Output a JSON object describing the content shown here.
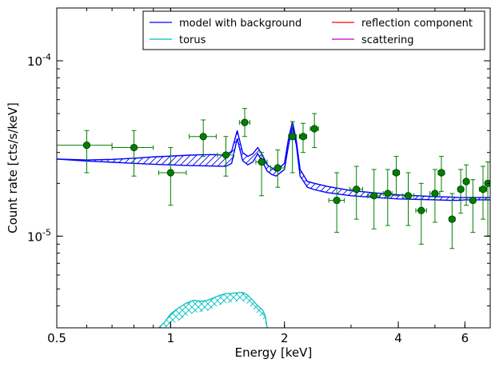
{
  "chart_data": {
    "type": "line",
    "xlabel": "Energy [keV]",
    "ylabel": "Count rate [cts/s/keV]",
    "x_scale": "log",
    "y_scale": "log",
    "xlim": [
      0.5,
      7.0
    ],
    "ylim": [
      3e-06,
      0.0002
    ],
    "x_ticks": [
      {
        "value": 0.5,
        "label": "0.5"
      },
      {
        "value": 1,
        "label": "1"
      },
      {
        "value": 2,
        "label": "2"
      },
      {
        "value": 4,
        "label": "4"
      },
      {
        "value": 6,
        "label": "6"
      }
    ],
    "y_ticks": [
      {
        "value": 1e-05,
        "base": "10",
        "exp": "-5"
      },
      {
        "value": 0.0001,
        "base": "10",
        "exp": "-4"
      }
    ],
    "legend": {
      "placement": "top-right",
      "entries": [
        {
          "label": "model with background",
          "color": "#0000ff"
        },
        {
          "label": "reflection component",
          "color": "#ff0000"
        },
        {
          "label": "torus",
          "color": "#00bfbf"
        },
        {
          "label": "scattering",
          "color": "#bf00bf"
        }
      ]
    },
    "colors": {
      "model": "#0000ff",
      "torus": "#00bfbf",
      "data": "#007f00",
      "errorbar": "#008000"
    },
    "model_band": {
      "x": [
        0.5,
        0.6,
        0.7,
        0.8,
        0.9,
        1.0,
        1.1,
        1.2,
        1.3,
        1.4,
        1.45,
        1.5,
        1.55,
        1.6,
        1.65,
        1.7,
        1.75,
        1.8,
        1.85,
        1.9,
        2.0,
        2.05,
        2.1,
        2.15,
        2.2,
        2.3,
        2.4,
        2.6,
        3.0,
        3.5,
        4.0,
        4.5,
        5.0,
        5.5,
        5.8,
        6.0,
        6.4,
        7.0
      ],
      "upper": [
        2.75e-05,
        2.72e-05,
        2.74e-05,
        2.78e-05,
        2.83e-05,
        2.86e-05,
        2.89e-05,
        2.91e-05,
        2.92e-05,
        2.9e-05,
        3.05e-05,
        4e-05,
        3e-05,
        2.85e-05,
        2.95e-05,
        3.2e-05,
        2.9e-05,
        2.55e-05,
        2.45e-05,
        2.35e-05,
        2.6e-05,
        3.6e-05,
        4.5e-05,
        3.5e-05,
        2.4e-05,
        2.05e-05,
        2e-05,
        1.92e-05,
        1.82e-05,
        1.76e-05,
        1.72e-05,
        1.7e-05,
        1.68e-05,
        1.67e-05,
        1.66e-05,
        1.66e-05,
        1.66e-05,
        1.66e-05
      ],
      "lower": [
        2.75e-05,
        2.68e-05,
        2.64e-05,
        2.6e-05,
        2.57e-05,
        2.55e-05,
        2.53e-05,
        2.52e-05,
        2.51e-05,
        2.5e-05,
        2.6e-05,
        3.6e-05,
        2.7e-05,
        2.55e-05,
        2.65e-05,
        2.95e-05,
        2.65e-05,
        2.35e-05,
        2.25e-05,
        2.2e-05,
        2.4e-05,
        3.3e-05,
        4.2e-05,
        3.3e-05,
        2.2e-05,
        1.9e-05,
        1.84e-05,
        1.77e-05,
        1.7e-05,
        1.66e-05,
        1.63e-05,
        1.62e-05,
        1.61e-05,
        1.6e-05,
        1.6e-05,
        1.61e-05,
        1.61e-05,
        1.61e-05
      ]
    },
    "torus_band": {
      "x": [
        0.93,
        0.96,
        1.0,
        1.05,
        1.1,
        1.15,
        1.2,
        1.25,
        1.3,
        1.35,
        1.4,
        1.45,
        1.5,
        1.55,
        1.6,
        1.65,
        1.7,
        1.75,
        1.78,
        1.8
      ],
      "upper": [
        3e-06,
        3.2e-06,
        3.6e-06,
        3.9e-06,
        4.15e-06,
        4.3e-06,
        4.25e-06,
        4.3e-06,
        4.45e-06,
        4.6e-06,
        4.7e-06,
        4.72e-06,
        4.75e-06,
        4.78e-06,
        4.6e-06,
        4.3e-06,
        4e-06,
        3.8e-06,
        3.5e-06,
        3e-06
      ],
      "lower": [
        3e-06,
        3e-06,
        3.1e-06,
        3.3e-06,
        3.5e-06,
        3.65e-06,
        3.7e-06,
        3.75e-06,
        3.9e-06,
        4.05e-06,
        4.15e-06,
        4.2e-06,
        4.25e-06,
        4.28e-06,
        4.1e-06,
        3.85e-06,
        3.6e-06,
        3.4e-06,
        3.2e-06,
        3e-06
      ]
    },
    "data_points": [
      {
        "x": 0.6,
        "xlo": 0.5,
        "xhi": 0.7,
        "y": 3.3e-05,
        "ylo": 2.3e-05,
        "yhi": 4e-05
      },
      {
        "x": 0.8,
        "xlo": 0.7,
        "xhi": 0.9,
        "y": 3.2e-05,
        "ylo": 2.2e-05,
        "yhi": 4e-05
      },
      {
        "x": 1.0,
        "xlo": 0.93,
        "xhi": 1.1,
        "y": 2.3e-05,
        "ylo": 1.5e-05,
        "yhi": 3.2e-05
      },
      {
        "x": 1.22,
        "xlo": 1.12,
        "xhi": 1.32,
        "y": 3.7e-05,
        "ylo": 2.85e-05,
        "yhi": 4.6e-05
      },
      {
        "x": 1.4,
        "xlo": 1.33,
        "xhi": 1.47,
        "y": 2.9e-05,
        "ylo": 2.2e-05,
        "yhi": 3.7e-05
      },
      {
        "x": 1.57,
        "xlo": 1.52,
        "xhi": 1.62,
        "y": 4.45e-05,
        "ylo": 3.7e-05,
        "yhi": 5.35e-05
      },
      {
        "x": 1.74,
        "xlo": 1.68,
        "xhi": 1.8,
        "y": 2.65e-05,
        "ylo": 1.7e-05,
        "yhi": 3e-05
      },
      {
        "x": 1.92,
        "xlo": 1.84,
        "xhi": 2.0,
        "y": 2.45e-05,
        "ylo": 1.9e-05,
        "yhi": 3.1e-05
      },
      {
        "x": 2.1,
        "xlo": 2.05,
        "xhi": 2.15,
        "y": 3.7e-05,
        "ylo": 2.3e-05,
        "yhi": 4.5e-05
      },
      {
        "x": 2.24,
        "xlo": 2.19,
        "xhi": 2.29,
        "y": 3.7e-05,
        "ylo": 3e-05,
        "yhi": 4.4e-05
      },
      {
        "x": 2.4,
        "xlo": 2.34,
        "xhi": 2.46,
        "y": 4.1e-05,
        "ylo": 3.2e-05,
        "yhi": 5e-05
      },
      {
        "x": 2.75,
        "xlo": 2.62,
        "xhi": 2.88,
        "y": 1.6e-05,
        "ylo": 1.05e-05,
        "yhi": 2.3e-05
      },
      {
        "x": 3.1,
        "xlo": 2.98,
        "xhi": 3.22,
        "y": 1.85e-05,
        "ylo": 1.25e-05,
        "yhi": 2.5e-05
      },
      {
        "x": 3.45,
        "xlo": 3.32,
        "xhi": 3.58,
        "y": 1.7e-05,
        "ylo": 1.1e-05,
        "yhi": 2.4e-05
      },
      {
        "x": 3.75,
        "xlo": 3.65,
        "xhi": 3.85,
        "y": 1.75e-05,
        "ylo": 1.15e-05,
        "yhi": 2.4e-05
      },
      {
        "x": 3.95,
        "xlo": 3.87,
        "xhi": 4.03,
        "y": 2.3e-05,
        "ylo": 1.7e-05,
        "yhi": 2.85e-05
      },
      {
        "x": 4.25,
        "xlo": 4.1,
        "xhi": 4.4,
        "y": 1.7e-05,
        "ylo": 1.15e-05,
        "yhi": 2.3e-05
      },
      {
        "x": 4.6,
        "xlo": 4.45,
        "xhi": 4.75,
        "y": 1.4e-05,
        "ylo": 9e-06,
        "yhi": 2e-05
      },
      {
        "x": 5.0,
        "xlo": 4.85,
        "xhi": 5.15,
        "y": 1.75e-05,
        "ylo": 1.2e-05,
        "yhi": 2.4e-05
      },
      {
        "x": 5.2,
        "xlo": 5.1,
        "xhi": 5.3,
        "y": 2.3e-05,
        "ylo": 1.8e-05,
        "yhi": 2.85e-05
      },
      {
        "x": 5.55,
        "xlo": 5.45,
        "xhi": 5.65,
        "y": 1.25e-05,
        "ylo": 8.5e-06,
        "yhi": 1.75e-05
      },
      {
        "x": 5.85,
        "xlo": 5.75,
        "xhi": 5.95,
        "y": 1.85e-05,
        "ylo": 1.35e-05,
        "yhi": 2.4e-05
      },
      {
        "x": 6.05,
        "xlo": 5.95,
        "xhi": 6.15,
        "y": 2.05e-05,
        "ylo": 1.5e-05,
        "yhi": 2.55e-05
      },
      {
        "x": 6.3,
        "xlo": 6.2,
        "xhi": 6.4,
        "y": 1.6e-05,
        "ylo": 1.05e-05,
        "yhi": 2.1e-05
      },
      {
        "x": 6.7,
        "xlo": 6.55,
        "xhi": 6.85,
        "y": 1.85e-05,
        "ylo": 1.25e-05,
        "yhi": 2.5e-05
      },
      {
        "x": 6.9,
        "xlo": 6.8,
        "xhi": 7.0,
        "y": 2e-05,
        "ylo": 1e-05,
        "yhi": 2.65e-05
      }
    ]
  }
}
